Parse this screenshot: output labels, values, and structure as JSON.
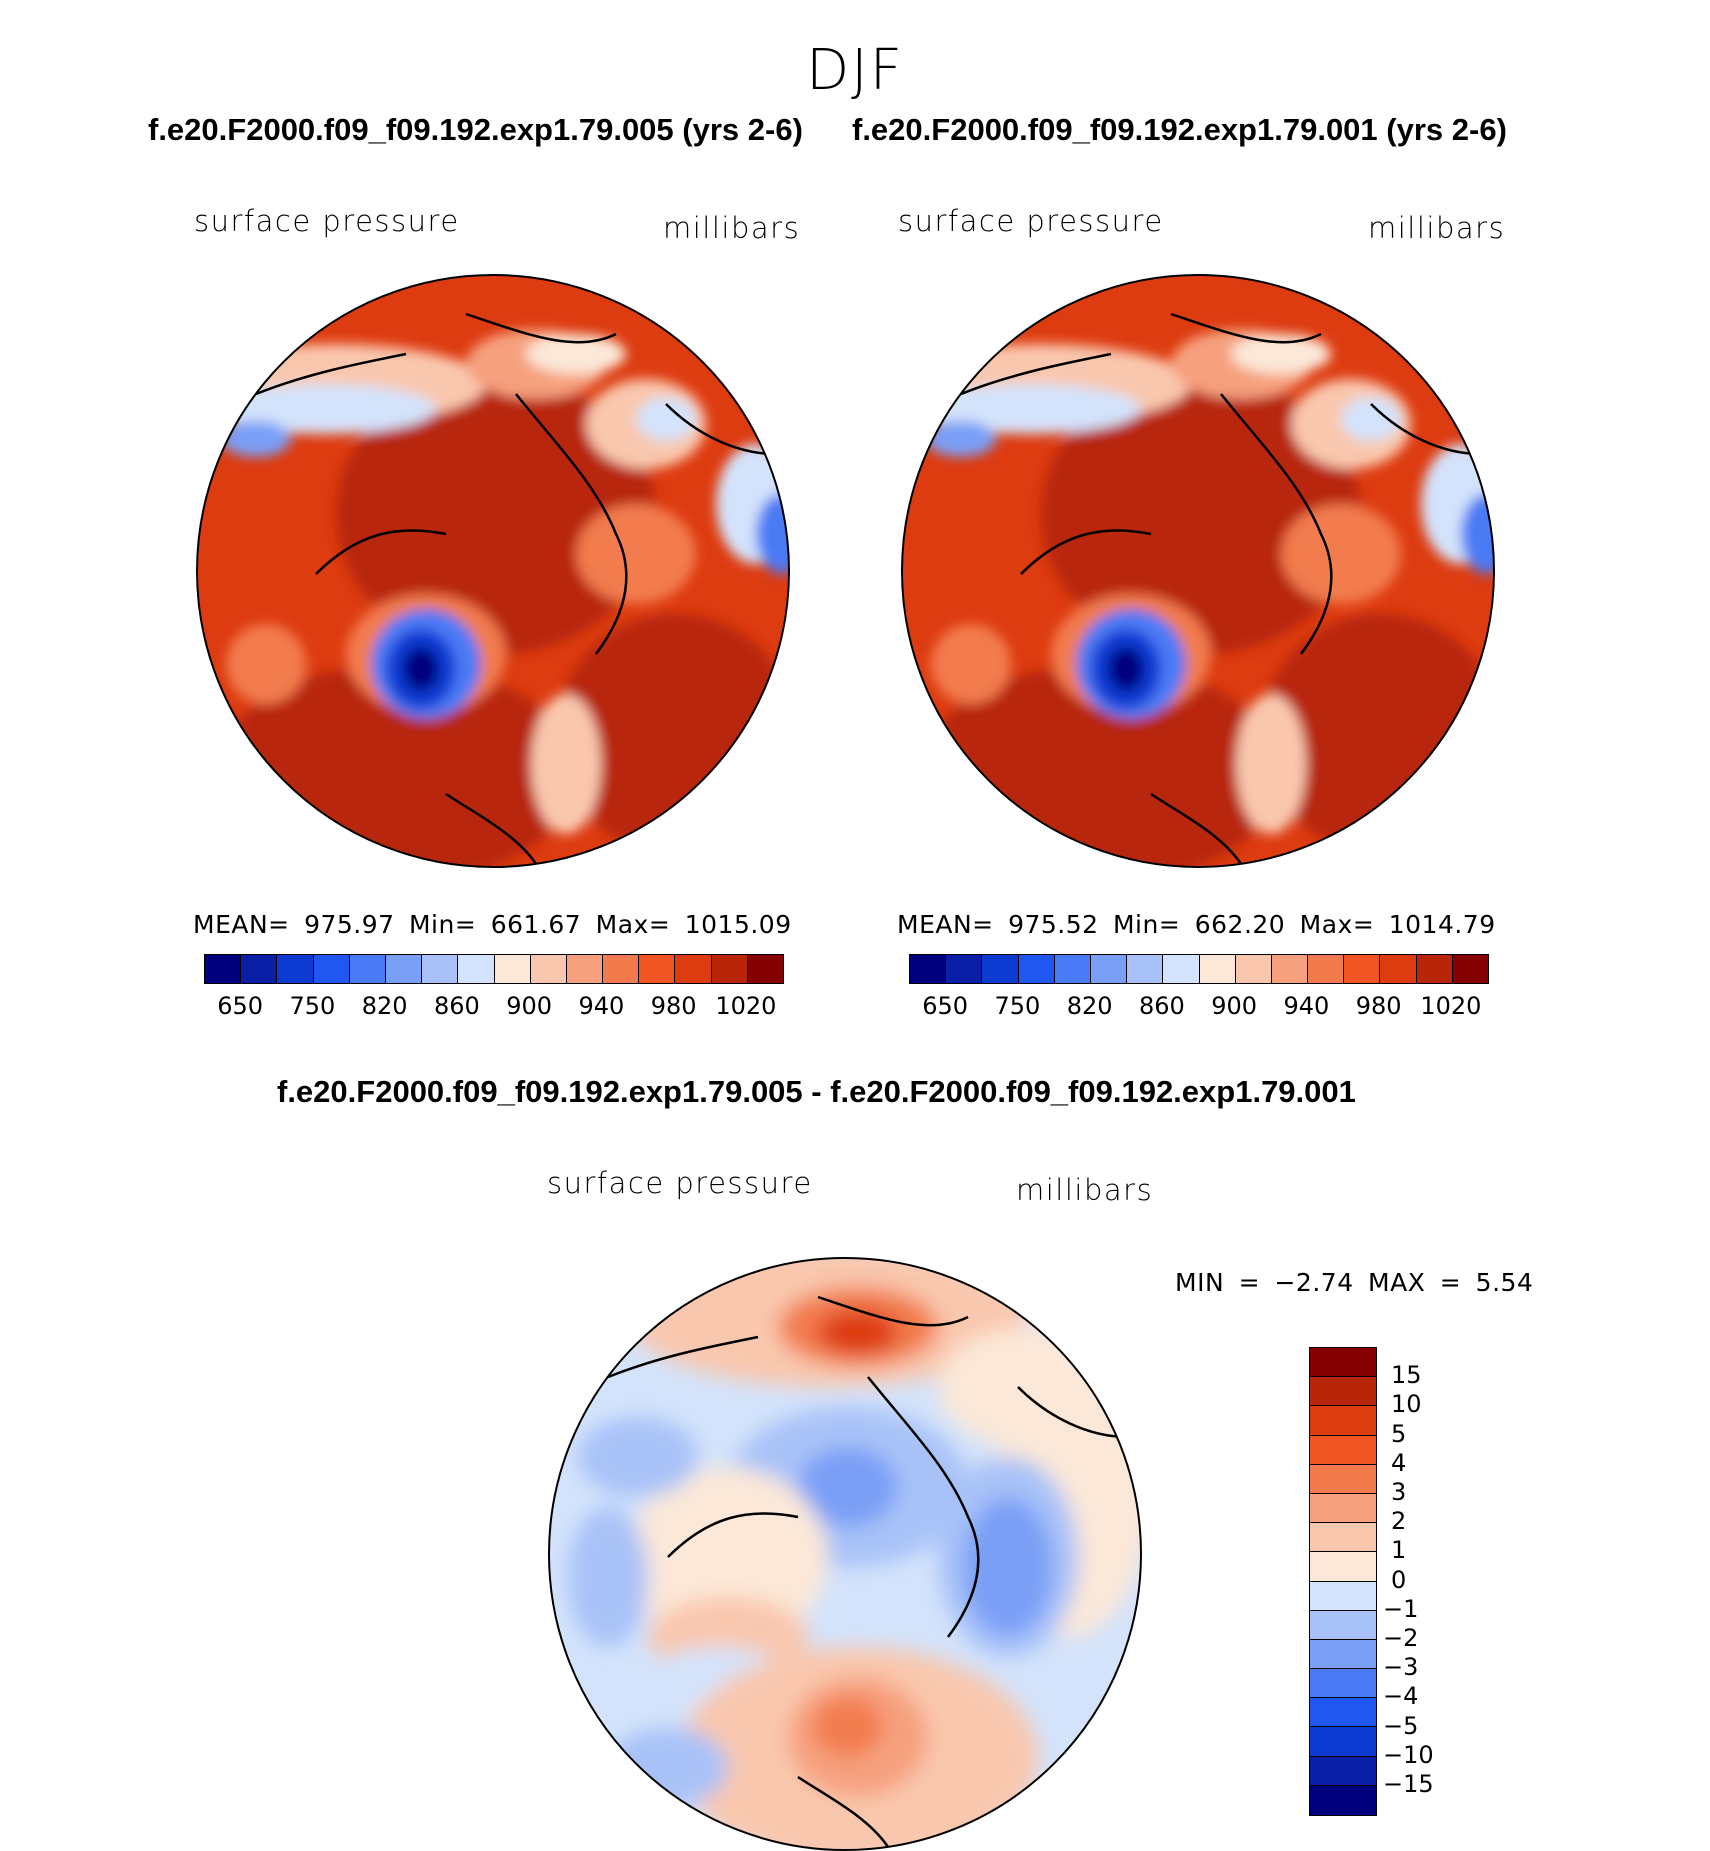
{
  "season": "DJF",
  "panels": [
    {
      "title": "f.e20.F2000.f09_f09.192.exp1.79.005 (yrs 2-6)",
      "variable": "surface pressure",
      "units": "millibars",
      "stats": "MEAN= 975.97   Min= 661.67   Max= 1015.09"
    },
    {
      "title": "f.e20.F2000.f09_f09.192.exp1.79.001 (yrs 2-6)",
      "variable": "surface pressure",
      "units": "millibars",
      "stats": "MEAN= 975.52   Min= 662.20   Max= 1014.79"
    }
  ],
  "diff": {
    "title": "f.e20.F2000.f09_f09.192.exp1.79.005 - f.e20.F2000.f09_f09.192.exp1.79.001",
    "variable": "surface pressure",
    "units": "millibars",
    "stats": "MIN =   −2.74 MAX =     5.54"
  },
  "colorbar_abs": {
    "labels": [
      "650",
      "750",
      "820",
      "860",
      "900",
      "940",
      "980",
      "1020"
    ],
    "colors": [
      "#00007f",
      "#0a1fa6",
      "#0d3bd1",
      "#2057f0",
      "#4b7af5",
      "#7a9ff6",
      "#a8c2f8",
      "#d3e3fb",
      "#fbe8d8",
      "#f9c7ad",
      "#f6a07e",
      "#f27b4e",
      "#f15524",
      "#dd3b10",
      "#b82508",
      "#850000"
    ]
  },
  "colorbar_diff": {
    "labels": [
      "15",
      "10",
      "5",
      "4",
      "3",
      "2",
      "1",
      "0",
      "−1",
      "−2",
      "−3",
      "−4",
      "−5",
      "−10",
      "−15"
    ],
    "colors": [
      "#850000",
      "#b82508",
      "#dd3b10",
      "#f15524",
      "#f27b4e",
      "#f6a07e",
      "#f9c7ad",
      "#fbe8d8",
      "#d3e3fb",
      "#a8c2f8",
      "#7a9ff6",
      "#4b7af5",
      "#2057f0",
      "#0d3bd1",
      "#0a1fa6",
      "#00007f"
    ]
  }
}
